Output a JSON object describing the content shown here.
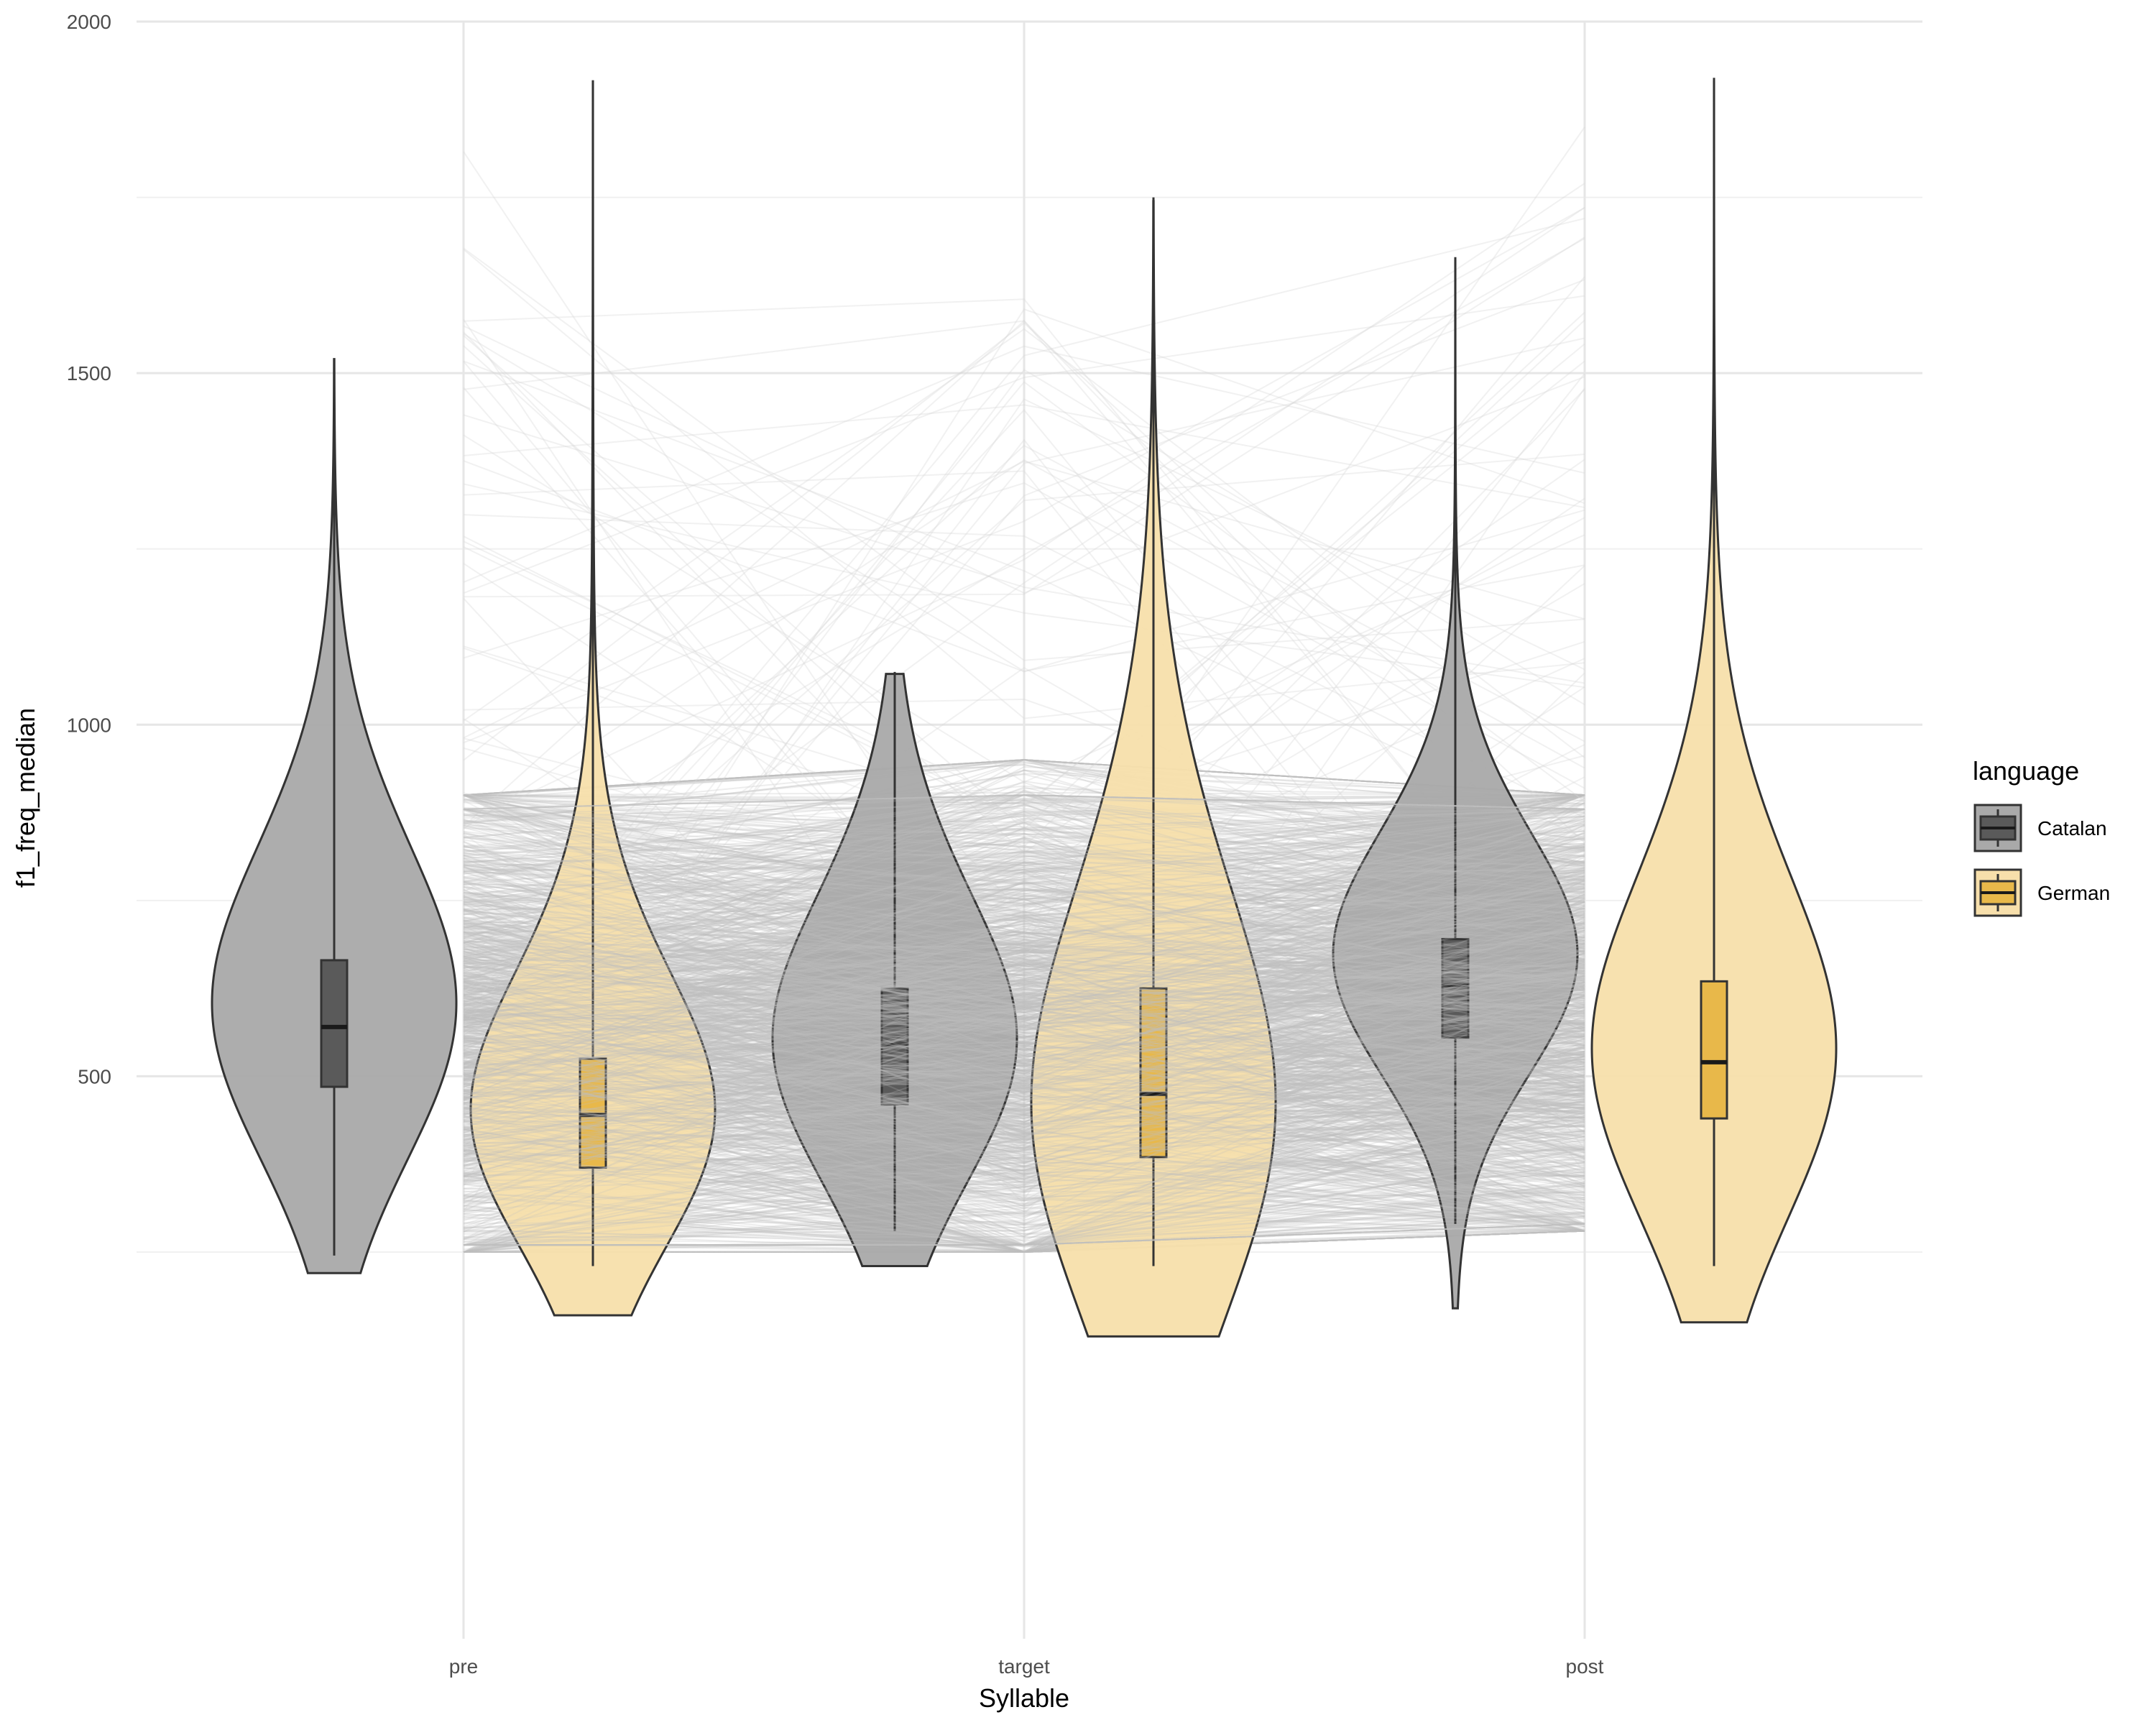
{
  "chart_data": {
    "type": "violin",
    "title": "",
    "xlabel": "Syllable",
    "ylabel": "f1_freq_median",
    "categories": [
      "pre",
      "target",
      "post"
    ],
    "ylim": [
      -300,
      2000
    ],
    "yticks": [
      500,
      1000,
      1500,
      2000
    ],
    "grid": true,
    "legend": {
      "title": "language",
      "position": "right",
      "entries": [
        {
          "name": "Catalan",
          "color": "#5a5a5a",
          "fill": "#a9a9a9"
        },
        {
          "name": "German",
          "color": "#e8b84a",
          "fill": "#f7dfab"
        }
      ]
    },
    "series": [
      {
        "name": "Catalan",
        "color": "#5a5a5a",
        "fill": "#a9a9a9",
        "violins": [
          {
            "category": "pre",
            "min": 220,
            "max": 1520,
            "q1": 485,
            "median": 570,
            "q3": 665,
            "whisker_low": 245,
            "whisker_high": 1520,
            "mode": 570
          },
          {
            "category": "target",
            "min": 230,
            "max": 1075,
            "q1": 460,
            "median": 545,
            "q3": 625,
            "whisker_low": 280,
            "whisker_high": 1075,
            "mode": 520
          },
          {
            "category": "post",
            "min": 170,
            "max": 1665,
            "q1": 555,
            "median": 630,
            "q3": 695,
            "whisker_low": 290,
            "whisker_high": 1665,
            "mode": 650
          }
        ]
      },
      {
        "name": "German",
        "color": "#e8b84a",
        "fill": "#f7dfab",
        "violins": [
          {
            "category": "pre",
            "min": 160,
            "max": 1915,
            "q1": 370,
            "median": 445,
            "q3": 525,
            "whisker_low": 230,
            "whisker_high": 1915,
            "mode": 420
          },
          {
            "category": "target",
            "min": 130,
            "max": 1750,
            "q1": 385,
            "median": 475,
            "q3": 625,
            "whisker_low": 230,
            "whisker_high": 1750,
            "mode": 410
          },
          {
            "category": "post",
            "min": 150,
            "max": 1920,
            "q1": 440,
            "median": 520,
            "q3": 635,
            "whisker_low": 230,
            "whisker_high": 1920,
            "mode": 500
          }
        ]
      }
    ],
    "trajectories": {
      "description": "faint grey lines connecting paired observations across syllables",
      "color": "#bdbdbd"
    }
  }
}
